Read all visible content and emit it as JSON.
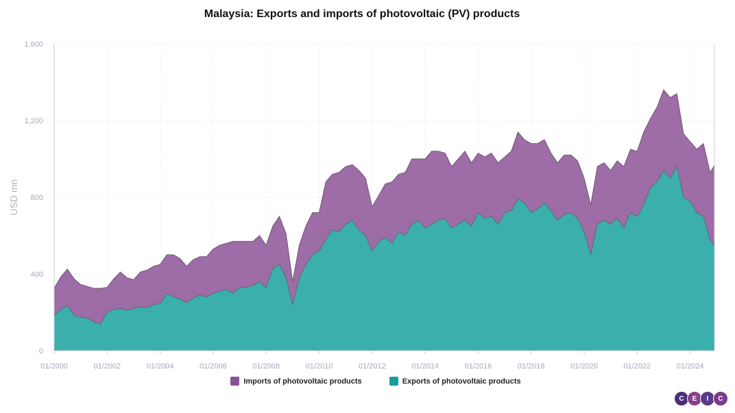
{
  "chart_data": {
    "type": "area",
    "title": "Malaysia: Exports and imports of photovoltaic (PV) products",
    "ylabel": "USD mn",
    "xlabel": "",
    "ylim": [
      0,
      1600
    ],
    "yticks": [
      0,
      400,
      800,
      "1,200",
      "1,600"
    ],
    "ytick_labels": [
      "0",
      "400",
      "800",
      "1,200",
      "1,600"
    ],
    "xtick_labels": [
      "01/2000",
      "01/2002",
      "01/2004",
      "01/2006",
      "01/2008",
      "01/2010",
      "01/2012",
      "01/2014",
      "01/2016",
      "01/2018",
      "01/2020",
      "01/2022",
      "01/2024"
    ],
    "stacked": true,
    "grid": true,
    "legend_position": "bottom",
    "series": [
      {
        "name": "Exports of photovoltaic products",
        "color": "#3aafac",
        "points": [
          [
            "2000-01",
            185
          ],
          [
            "2000-04",
            215
          ],
          [
            "2000-07",
            235
          ],
          [
            "2000-10",
            185
          ],
          [
            "2001-01",
            175
          ],
          [
            "2001-04",
            170
          ],
          [
            "2001-07",
            150
          ],
          [
            "2001-10",
            140
          ],
          [
            "2002-01",
            200
          ],
          [
            "2002-04",
            215
          ],
          [
            "2002-07",
            220
          ],
          [
            "2002-10",
            210
          ],
          [
            "2003-01",
            220
          ],
          [
            "2003-04",
            230
          ],
          [
            "2003-07",
            225
          ],
          [
            "2003-10",
            240
          ],
          [
            "2004-01",
            245
          ],
          [
            "2004-04",
            300
          ],
          [
            "2004-07",
            280
          ],
          [
            "2004-10",
            270
          ],
          [
            "2005-01",
            250
          ],
          [
            "2005-04",
            275
          ],
          [
            "2005-07",
            290
          ],
          [
            "2005-10",
            280
          ],
          [
            "2006-01",
            300
          ],
          [
            "2006-04",
            310
          ],
          [
            "2006-07",
            320
          ],
          [
            "2006-10",
            300
          ],
          [
            "2007-01",
            330
          ],
          [
            "2007-04",
            330
          ],
          [
            "2007-07",
            340
          ],
          [
            "2007-10",
            360
          ],
          [
            "2008-01",
            330
          ],
          [
            "2008-04",
            430
          ],
          [
            "2008-07",
            450
          ],
          [
            "2008-10",
            380
          ],
          [
            "2009-01",
            240
          ],
          [
            "2009-04",
            380
          ],
          [
            "2009-07",
            450
          ],
          [
            "2009-10",
            500
          ],
          [
            "2010-01",
            520
          ],
          [
            "2010-04",
            580
          ],
          [
            "2010-07",
            630
          ],
          [
            "2010-10",
            620
          ],
          [
            "2011-01",
            660
          ],
          [
            "2011-04",
            680
          ],
          [
            "2011-07",
            630
          ],
          [
            "2011-10",
            600
          ],
          [
            "2012-01",
            520
          ],
          [
            "2012-04",
            570
          ],
          [
            "2012-07",
            590
          ],
          [
            "2012-10",
            560
          ],
          [
            "2013-01",
            620
          ],
          [
            "2013-04",
            600
          ],
          [
            "2013-07",
            660
          ],
          [
            "2013-10",
            680
          ],
          [
            "2014-01",
            640
          ],
          [
            "2014-04",
            660
          ],
          [
            "2014-07",
            680
          ],
          [
            "2014-10",
            690
          ],
          [
            "2015-01",
            640
          ],
          [
            "2015-04",
            660
          ],
          [
            "2015-07",
            680
          ],
          [
            "2015-10",
            650
          ],
          [
            "2016-01",
            720
          ],
          [
            "2016-04",
            690
          ],
          [
            "2016-07",
            700
          ],
          [
            "2016-10",
            660
          ],
          [
            "2017-01",
            720
          ],
          [
            "2017-04",
            730
          ],
          [
            "2017-07",
            790
          ],
          [
            "2017-10",
            770
          ],
          [
            "2018-01",
            720
          ],
          [
            "2018-04",
            740
          ],
          [
            "2018-07",
            770
          ],
          [
            "2018-10",
            730
          ],
          [
            "2019-01",
            680
          ],
          [
            "2019-04",
            710
          ],
          [
            "2019-07",
            720
          ],
          [
            "2019-10",
            690
          ],
          [
            "2020-01",
            620
          ],
          [
            "2020-04",
            500
          ],
          [
            "2020-07",
            660
          ],
          [
            "2020-10",
            680
          ],
          [
            "2021-01",
            660
          ],
          [
            "2021-04",
            690
          ],
          [
            "2021-07",
            640
          ],
          [
            "2021-10",
            720
          ],
          [
            "2022-01",
            700
          ],
          [
            "2022-04",
            760
          ],
          [
            "2022-07",
            850
          ],
          [
            "2022-10",
            880
          ],
          [
            "2023-01",
            940
          ],
          [
            "2023-04",
            900
          ],
          [
            "2023-07",
            960
          ],
          [
            "2023-10",
            800
          ],
          [
            "2024-01",
            780
          ],
          [
            "2024-04",
            720
          ],
          [
            "2024-07",
            700
          ],
          [
            "2024-10",
            580
          ],
          [
            "2024-12",
            545
          ]
        ]
      },
      {
        "name": "Imports of photovoltaic products",
        "color": "#9e6ca7",
        "points": [
          [
            "2000-01",
            140
          ],
          [
            "2000-04",
            170
          ],
          [
            "2000-07",
            190
          ],
          [
            "2000-10",
            190
          ],
          [
            "2001-01",
            170
          ],
          [
            "2001-04",
            165
          ],
          [
            "2001-07",
            175
          ],
          [
            "2001-10",
            185
          ],
          [
            "2002-01",
            130
          ],
          [
            "2002-04",
            160
          ],
          [
            "2002-07",
            190
          ],
          [
            "2002-10",
            170
          ],
          [
            "2003-01",
            150
          ],
          [
            "2003-04",
            180
          ],
          [
            "2003-07",
            195
          ],
          [
            "2003-10",
            200
          ],
          [
            "2004-01",
            205
          ],
          [
            "2004-04",
            200
          ],
          [
            "2004-07",
            220
          ],
          [
            "2004-10",
            210
          ],
          [
            "2005-01",
            190
          ],
          [
            "2005-04",
            200
          ],
          [
            "2005-07",
            200
          ],
          [
            "2005-10",
            210
          ],
          [
            "2006-01",
            230
          ],
          [
            "2006-04",
            240
          ],
          [
            "2006-07",
            240
          ],
          [
            "2006-10",
            270
          ],
          [
            "2007-01",
            240
          ],
          [
            "2007-04",
            240
          ],
          [
            "2007-07",
            230
          ],
          [
            "2007-10",
            240
          ],
          [
            "2008-01",
            220
          ],
          [
            "2008-04",
            220
          ],
          [
            "2008-07",
            250
          ],
          [
            "2008-10",
            230
          ],
          [
            "2009-01",
            120
          ],
          [
            "2009-04",
            170
          ],
          [
            "2009-07",
            200
          ],
          [
            "2009-10",
            220
          ],
          [
            "2010-01",
            200
          ],
          [
            "2010-04",
            300
          ],
          [
            "2010-07",
            290
          ],
          [
            "2010-10",
            310
          ],
          [
            "2011-01",
            300
          ],
          [
            "2011-04",
            290
          ],
          [
            "2011-07",
            310
          ],
          [
            "2011-10",
            300
          ],
          [
            "2012-01",
            230
          ],
          [
            "2012-04",
            240
          ],
          [
            "2012-07",
            280
          ],
          [
            "2012-10",
            320
          ],
          [
            "2013-01",
            300
          ],
          [
            "2013-04",
            330
          ],
          [
            "2013-07",
            340
          ],
          [
            "2013-10",
            320
          ],
          [
            "2014-01",
            360
          ],
          [
            "2014-04",
            380
          ],
          [
            "2014-07",
            360
          ],
          [
            "2014-10",
            340
          ],
          [
            "2015-01",
            320
          ],
          [
            "2015-04",
            340
          ],
          [
            "2015-07",
            360
          ],
          [
            "2015-10",
            330
          ],
          [
            "2016-01",
            310
          ],
          [
            "2016-04",
            320
          ],
          [
            "2016-07",
            330
          ],
          [
            "2016-10",
            320
          ],
          [
            "2017-01",
            290
          ],
          [
            "2017-04",
            310
          ],
          [
            "2017-07",
            350
          ],
          [
            "2017-10",
            330
          ],
          [
            "2018-01",
            360
          ],
          [
            "2018-04",
            340
          ],
          [
            "2018-07",
            330
          ],
          [
            "2018-10",
            300
          ],
          [
            "2019-01",
            300
          ],
          [
            "2019-04",
            310
          ],
          [
            "2019-07",
            300
          ],
          [
            "2019-10",
            300
          ],
          [
            "2020-01",
            280
          ],
          [
            "2020-04",
            260
          ],
          [
            "2020-07",
            300
          ],
          [
            "2020-10",
            300
          ],
          [
            "2021-01",
            280
          ],
          [
            "2021-04",
            300
          ],
          [
            "2021-07",
            320
          ],
          [
            "2021-10",
            330
          ],
          [
            "2022-01",
            340
          ],
          [
            "2022-04",
            380
          ],
          [
            "2022-07",
            360
          ],
          [
            "2022-10",
            390
          ],
          [
            "2023-01",
            420
          ],
          [
            "2023-04",
            420
          ],
          [
            "2023-07",
            380
          ],
          [
            "2023-10",
            330
          ],
          [
            "2024-01",
            310
          ],
          [
            "2024-04",
            330
          ],
          [
            "2024-07",
            380
          ],
          [
            "2024-10",
            350
          ],
          [
            "2024-12",
            420
          ]
        ]
      }
    ]
  },
  "brand": {
    "letters": [
      "C",
      "E",
      "I",
      "C"
    ],
    "colors": [
      "#4b2f79",
      "#8a3f8f",
      "#5a3a8a",
      "#7b3c8c"
    ]
  }
}
